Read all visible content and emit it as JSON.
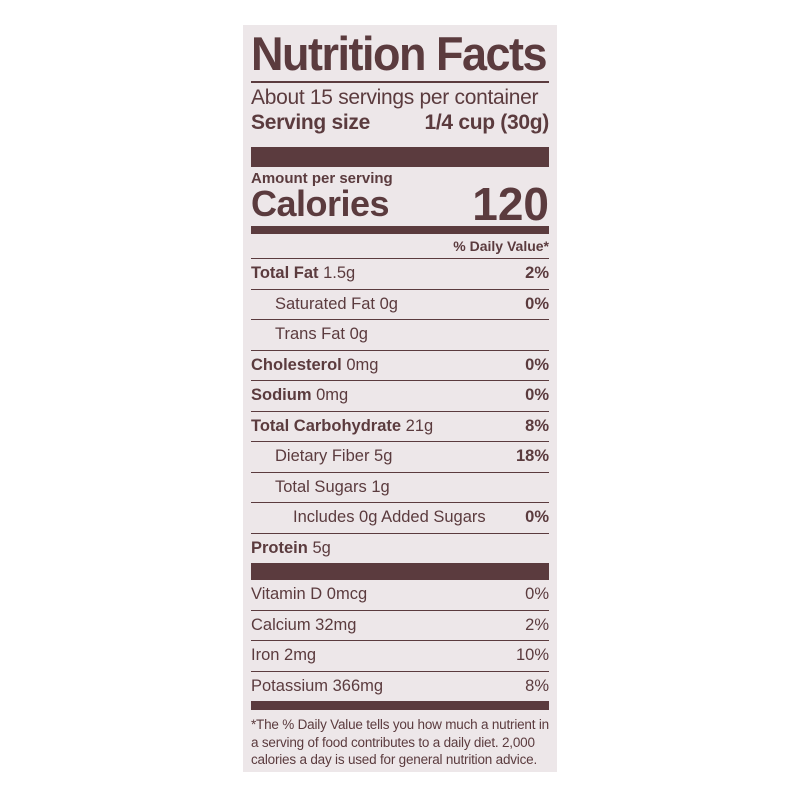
{
  "title": "Nutrition Facts",
  "servings_per_container": "About 15 servings per container",
  "serving_size_label": "Serving size",
  "serving_size_value": "1/4 cup (30g)",
  "amount_per_serving": "Amount per serving",
  "calories_label": "Calories",
  "calories_value": "120",
  "daily_value_header": "% Daily Value*",
  "nutrients": [
    {
      "name": "Total Fat",
      "amount": "1.5g",
      "dv": "2%",
      "bold": true,
      "indent": 0
    },
    {
      "name": "Saturated Fat",
      "amount": "0g",
      "dv": "0%",
      "bold": false,
      "indent": 1
    },
    {
      "name": "Trans Fat",
      "amount": "0g",
      "dv": "",
      "bold": false,
      "indent": 1
    },
    {
      "name": "Cholesterol",
      "amount": "0mg",
      "dv": "0%",
      "bold": true,
      "indent": 0
    },
    {
      "name": "Sodium",
      "amount": "0mg",
      "dv": "0%",
      "bold": true,
      "indent": 0
    },
    {
      "name": "Total Carbohydrate",
      "amount": "21g",
      "dv": "8%",
      "bold": true,
      "indent": 0
    },
    {
      "name": "Dietary Fiber",
      "amount": "5g",
      "dv": "18%",
      "bold": false,
      "indent": 1
    },
    {
      "name": "Total Sugars",
      "amount": "1g",
      "dv": "",
      "bold": false,
      "indent": 1
    },
    {
      "name": "Includes 0g Added Sugars",
      "amount": "",
      "dv": "0%",
      "bold": false,
      "indent": 2
    },
    {
      "name": "Protein",
      "amount": "5g",
      "dv": "",
      "bold": true,
      "indent": 0
    }
  ],
  "vitamins": [
    {
      "name": "Vitamin D 0mcg",
      "dv": "0%"
    },
    {
      "name": "Calcium 32mg",
      "dv": "2%"
    },
    {
      "name": "Iron 2mg",
      "dv": "10%"
    },
    {
      "name": "Potassium 366mg",
      "dv": "8%"
    }
  ],
  "footnote": "*The % Daily Value tells you how much a nutrient in a serving of food contributes to a daily diet. 2,000 calories a day is used for general nutrition advice.",
  "colors": {
    "ink": "#5b3b3e",
    "background": "#ede7e9"
  }
}
